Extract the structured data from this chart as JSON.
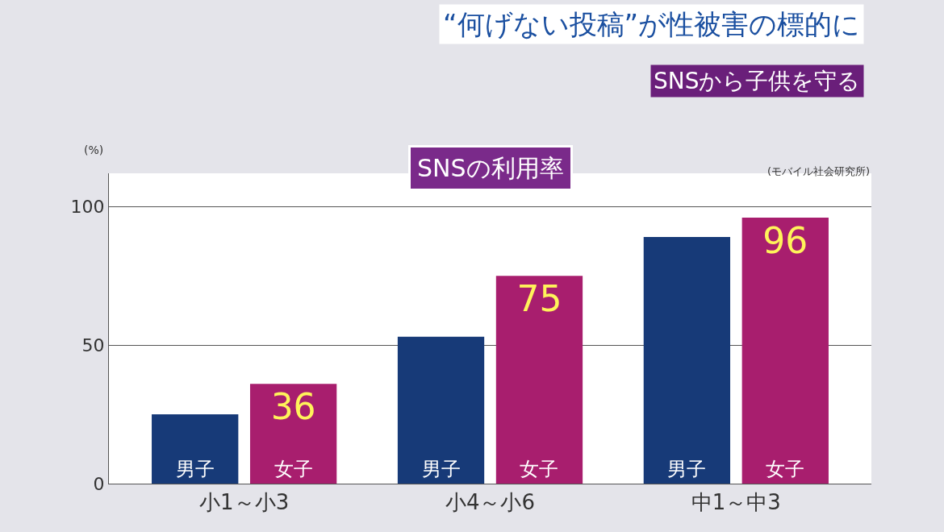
{
  "chart_data": {
    "type": "bar",
    "title": "SNSの利用率",
    "ylabel": "(%)",
    "annotations": [
      "“何げない投稿”が性被害の標的に",
      "SNSから子供を守る",
      "(モバイル社会研究所)"
    ],
    "categories": [
      "小1～小3",
      "小4～小6",
      "中1～中3"
    ],
    "series": [
      {
        "name": "男子",
        "color": "#173a78",
        "values": [
          25,
          53,
          89
        ]
      },
      {
        "name": "女子",
        "color": "#a81e6e",
        "values": [
          36,
          75,
          96
        ],
        "value_labels": [
          "36",
          "75",
          "96"
        ]
      }
    ],
    "ylim": [
      0,
      112
    ],
    "yticks": [
      0,
      50,
      100
    ],
    "grid": "y",
    "legend": false
  }
}
